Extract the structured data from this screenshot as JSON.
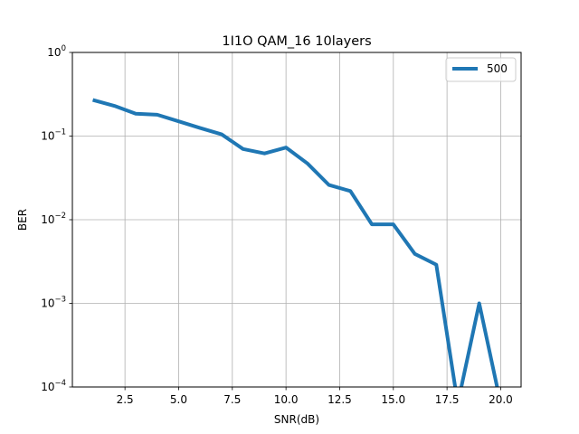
{
  "chart_data": {
    "type": "line",
    "title": "1I1O QAM_16 10layers",
    "xlabel": "SNR(dB)",
    "ylabel": "BER",
    "xscale": "linear",
    "yscale": "log",
    "xlim": [
      0.05,
      20.95
    ],
    "ylim": [
      0.0001,
      1
    ],
    "grid": true,
    "legend_position": "top-right",
    "x_ticks": [
      2.5,
      5.0,
      7.5,
      10.0,
      12.5,
      15.0,
      17.5,
      20.0
    ],
    "x_tick_labels": [
      "2.5",
      "5.0",
      "7.5",
      "10.0",
      "12.5",
      "15.0",
      "17.5",
      "20.0"
    ],
    "y_ticks": [
      0.0001,
      0.001,
      0.01,
      0.1,
      1
    ],
    "y_tick_exponents": [
      "−4",
      "−3",
      "−2",
      "−1",
      "0"
    ],
    "y_tick_base": "10",
    "series": [
      {
        "name": "500",
        "color": "#1f77b4",
        "x": [
          1,
          2,
          3,
          4,
          5,
          6,
          7,
          8,
          9,
          10,
          11,
          12,
          13,
          14,
          15,
          16,
          17,
          18,
          19,
          20
        ],
        "y": [
          0.27,
          0.23,
          0.185,
          0.18,
          0.15,
          0.125,
          0.105,
          0.07,
          0.062,
          0.073,
          0.047,
          0.026,
          0.022,
          0.0088,
          0.0088,
          0.0039,
          0.0029,
          0,
          0.001,
          0
        ]
      }
    ]
  }
}
